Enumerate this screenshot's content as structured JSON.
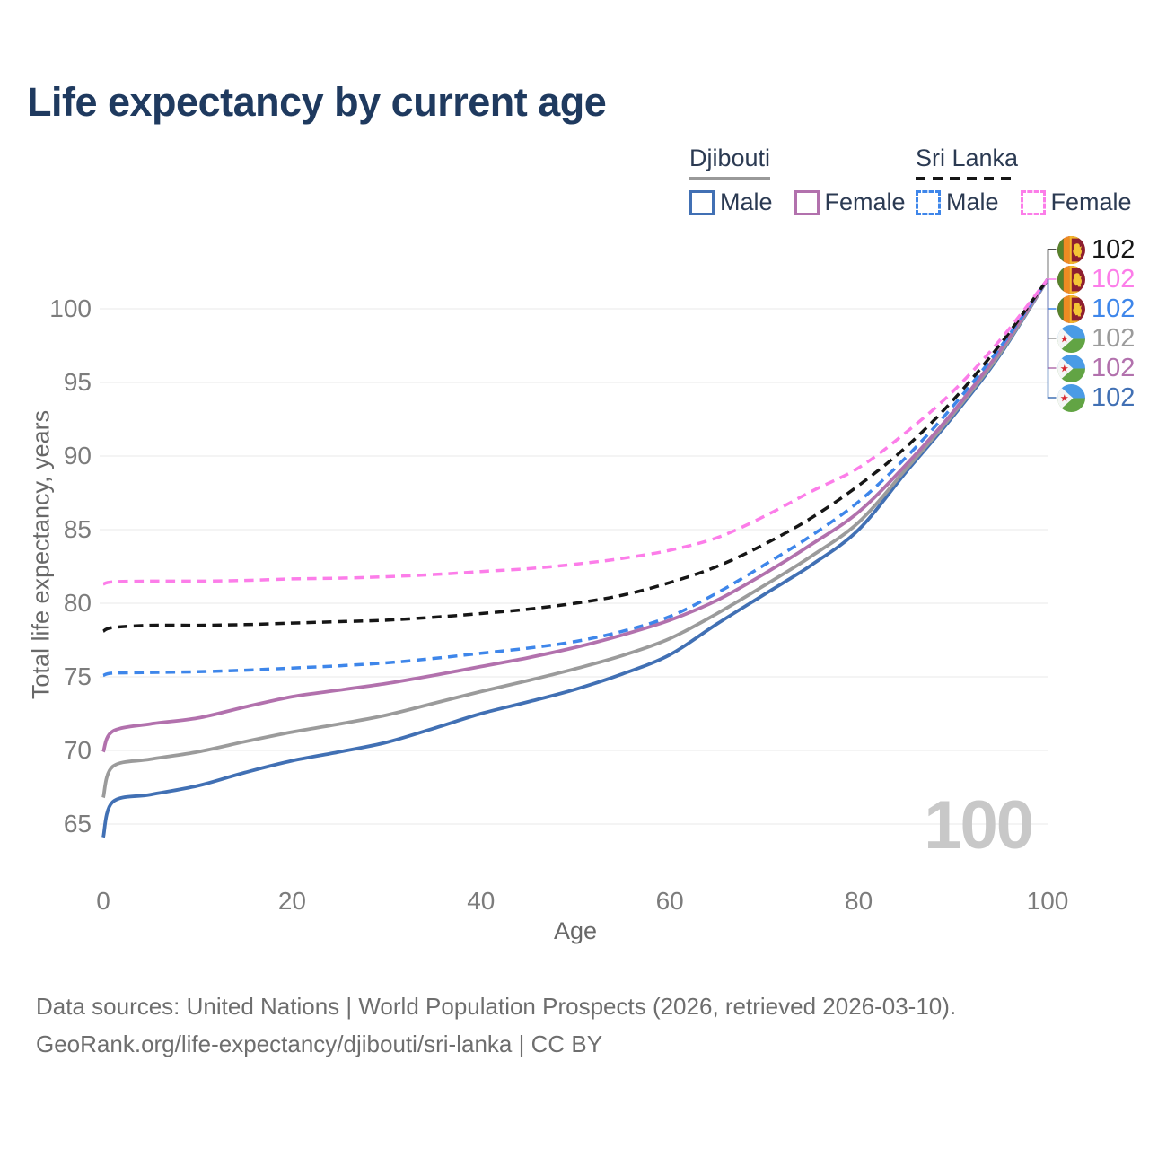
{
  "title": "Life expectancy by current age",
  "legend": {
    "groups": [
      {
        "country": "Djibouti",
        "line_style": "solid",
        "underline_color": "#999999",
        "items": [
          {
            "label": "Male",
            "color": "#4170b4",
            "dashed": false
          },
          {
            "label": "Female",
            "color": "#b271ad",
            "dashed": false
          }
        ]
      },
      {
        "country": "Sri Lanka",
        "line_style": "dashed",
        "underline_color": "#161616",
        "items": [
          {
            "label": "Male",
            "color": "#3e86ea",
            "dashed": true
          },
          {
            "label": "Female",
            "color": "#fc7de9",
            "dashed": true
          }
        ]
      }
    ]
  },
  "chart_data": {
    "type": "line",
    "title": "Life expectancy by current age",
    "xlabel": "Age",
    "ylabel": "Total life expectancy, years",
    "x_ticks": [
      0,
      20,
      40,
      60,
      80,
      100
    ],
    "y_ticks": [
      65,
      70,
      75,
      80,
      85,
      90,
      95,
      100
    ],
    "xlim": [
      0,
      100
    ],
    "ylim": [
      63.5,
      103
    ],
    "grid": "horizontal",
    "legend_position": "top-right",
    "ages": [
      0,
      1,
      5,
      10,
      15,
      20,
      25,
      30,
      35,
      40,
      45,
      50,
      55,
      60,
      65,
      70,
      75,
      80,
      85,
      90,
      95,
      100
    ],
    "series": [
      {
        "name": "Djibouti Male",
        "country": "Djibouti",
        "sex": "Male",
        "style": "solid",
        "color": "#4170b4",
        "end_value": 102,
        "values": [
          64.1,
          66.5,
          67.0,
          67.6,
          68.5,
          69.3,
          69.9,
          70.55,
          71.5,
          72.5,
          73.3,
          74.15,
          75.2,
          76.5,
          78.6,
          80.6,
          82.6,
          85.0,
          88.9,
          92.7,
          96.9,
          102
        ]
      },
      {
        "name": "Djibouti Both sexes",
        "country": "Djibouti",
        "sex": "Both",
        "style": "solid",
        "color": "#9b9b9b",
        "end_value": 102,
        "values": [
          66.8,
          68.9,
          69.4,
          69.9,
          70.6,
          71.25,
          71.8,
          72.4,
          73.2,
          74.0,
          74.75,
          75.55,
          76.45,
          77.6,
          79.3,
          81.2,
          83.2,
          85.5,
          89.1,
          92.85,
          97.0,
          102
        ]
      },
      {
        "name": "Djibouti Female",
        "country": "Djibouti",
        "sex": "Female",
        "style": "solid",
        "color": "#b271ad",
        "end_value": 102,
        "values": [
          69.9,
          71.3,
          71.8,
          72.2,
          72.95,
          73.65,
          74.1,
          74.55,
          75.1,
          75.7,
          76.3,
          77.0,
          77.85,
          78.85,
          80.2,
          82.0,
          84.0,
          86.2,
          89.4,
          93.0,
          97.2,
          102
        ]
      },
      {
        "name": "Sri Lanka Male",
        "country": "Sri Lanka",
        "sex": "Male",
        "style": "dashed",
        "color": "#3e86ea",
        "end_value": 102,
        "values": [
          75.1,
          75.25,
          75.3,
          75.35,
          75.45,
          75.6,
          75.75,
          75.95,
          76.25,
          76.6,
          76.95,
          77.4,
          78.1,
          79.1,
          80.7,
          82.6,
          84.6,
          86.9,
          89.9,
          93.4,
          97.4,
          102
        ]
      },
      {
        "name": "Sri Lanka Both sexes",
        "country": "Sri Lanka",
        "sex": "Both",
        "style": "dashed",
        "color": "#161616",
        "end_value": 102,
        "values": [
          78.1,
          78.35,
          78.5,
          78.5,
          78.55,
          78.65,
          78.75,
          78.85,
          79.05,
          79.3,
          79.6,
          80.0,
          80.55,
          81.4,
          82.5,
          84.0,
          85.8,
          88.0,
          90.6,
          93.8,
          97.6,
          102
        ]
      },
      {
        "name": "Sri Lanka Female",
        "country": "Sri Lanka",
        "sex": "Female",
        "style": "dashed",
        "color": "#fc7de9",
        "end_value": 102,
        "values": [
          81.3,
          81.45,
          81.5,
          81.5,
          81.55,
          81.65,
          81.7,
          81.8,
          81.95,
          82.15,
          82.35,
          82.65,
          83.05,
          83.6,
          84.45,
          85.9,
          87.6,
          89.2,
          91.6,
          94.4,
          97.9,
          102
        ]
      }
    ],
    "end_labels": [
      {
        "flag": "sri-lanka",
        "value": "102",
        "color": "#161616"
      },
      {
        "flag": "sri-lanka",
        "value": "102",
        "color": "#fc7de9"
      },
      {
        "flag": "sri-lanka",
        "value": "102",
        "color": "#3e86ea"
      },
      {
        "flag": "djibouti",
        "value": "102",
        "color": "#9b9b9b"
      },
      {
        "flag": "djibouti",
        "value": "102",
        "color": "#b271ad"
      },
      {
        "flag": "djibouti",
        "value": "102",
        "color": "#4170b4"
      }
    ],
    "watermark": "100"
  },
  "footer": {
    "line1": "Data sources: United Nations | World Population Prospects (2026, retrieved 2026-03-10).",
    "line2": "GeoRank.org/life-expectancy/djibouti/sri-lanka | CC BY"
  }
}
